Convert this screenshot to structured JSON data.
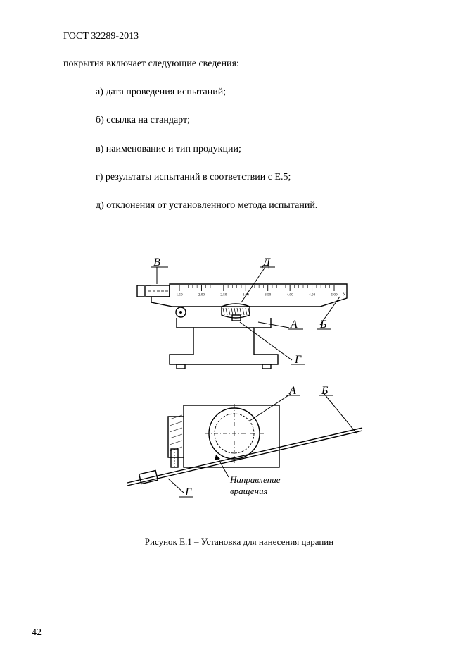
{
  "header": "ГОСТ 32289-2013",
  "intro": "покрытия включает следующие сведения:",
  "items": {
    "a": "а) дата проведения испытаний;",
    "b": "б) ссылка на стандарт;",
    "c": "в) наименование и тип продукции;",
    "d": "г) результаты испытаний в соответствии с Е.5;",
    "e": "д) отклонения от установленного метода испытаний."
  },
  "figure": {
    "labels": {
      "A": "А",
      "B": "Б",
      "V": "В",
      "G": "Г",
      "D": "Д"
    },
    "scale_ticks": [
      "1.50",
      "2.00",
      "2.50",
      "3.00",
      "3.50",
      "4.00",
      "4.50",
      "5.00"
    ],
    "scale_unit": "N",
    "annotation_line1": "Направление",
    "annotation_line2": "вращения",
    "caption": "Рисунок Е.1 – Установка для нанесения царапин",
    "style": {
      "stroke": "#000000",
      "stroke_width": 1.4,
      "hatch_w": 0.9,
      "bg": "#ffffff",
      "label_font_size": 16,
      "label_font_style": "italic",
      "tick_font_size": 5.2,
      "annot_font_size": 13,
      "annot_font_style": "italic"
    }
  },
  "page_number": "42"
}
